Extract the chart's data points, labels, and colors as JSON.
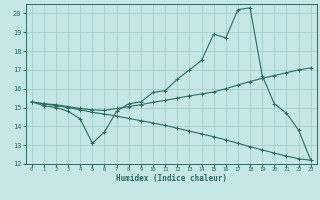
{
  "xlabel": "Humidex (Indice chaleur)",
  "bg_color": "#c5e8e4",
  "line_color": "#2a6b60",
  "grid_color": "#a0ccc8",
  "ylim": [
    12,
    20.5
  ],
  "xlim": [
    -0.5,
    23.5
  ],
  "yticks": [
    12,
    13,
    14,
    15,
    16,
    17,
    18,
    19,
    20
  ],
  "xticks": [
    0,
    1,
    2,
    3,
    4,
    5,
    6,
    7,
    8,
    9,
    10,
    11,
    12,
    13,
    14,
    15,
    16,
    17,
    18,
    19,
    20,
    21,
    22,
    23
  ],
  "line1_x": [
    0,
    1,
    2,
    3,
    4,
    5,
    6,
    7,
    8,
    9,
    10,
    11,
    12,
    13,
    14,
    15,
    16,
    17,
    18,
    19,
    20,
    21,
    22,
    23
  ],
  "line1_y": [
    15.3,
    15.1,
    15.0,
    14.8,
    14.4,
    13.1,
    13.7,
    14.8,
    15.2,
    15.3,
    15.8,
    15.9,
    16.5,
    17.0,
    17.5,
    18.9,
    18.7,
    20.2,
    20.3,
    16.7,
    15.2,
    14.7,
    13.8,
    12.2
  ],
  "line2_x": [
    0,
    1,
    2,
    3,
    4,
    5,
    6,
    7,
    8,
    9,
    10,
    11,
    12,
    13,
    14,
    15,
    16,
    17,
    18,
    19,
    20,
    21,
    22,
    23
  ],
  "line2_y": [
    15.3,
    15.2,
    15.15,
    15.05,
    14.95,
    14.88,
    14.85,
    14.95,
    15.05,
    15.15,
    15.28,
    15.38,
    15.5,
    15.62,
    15.72,
    15.83,
    16.0,
    16.2,
    16.38,
    16.55,
    16.7,
    16.85,
    17.0,
    17.1
  ],
  "line3_x": [
    0,
    1,
    2,
    3,
    4,
    5,
    6,
    7,
    8,
    9,
    10,
    11,
    12,
    13,
    14,
    15,
    16,
    17,
    18,
    19,
    20,
    21,
    22,
    23
  ],
  "line3_y": [
    15.3,
    15.2,
    15.1,
    15.0,
    14.88,
    14.75,
    14.65,
    14.55,
    14.42,
    14.3,
    14.18,
    14.05,
    13.9,
    13.75,
    13.6,
    13.45,
    13.28,
    13.1,
    12.92,
    12.75,
    12.58,
    12.42,
    12.28,
    12.2
  ]
}
